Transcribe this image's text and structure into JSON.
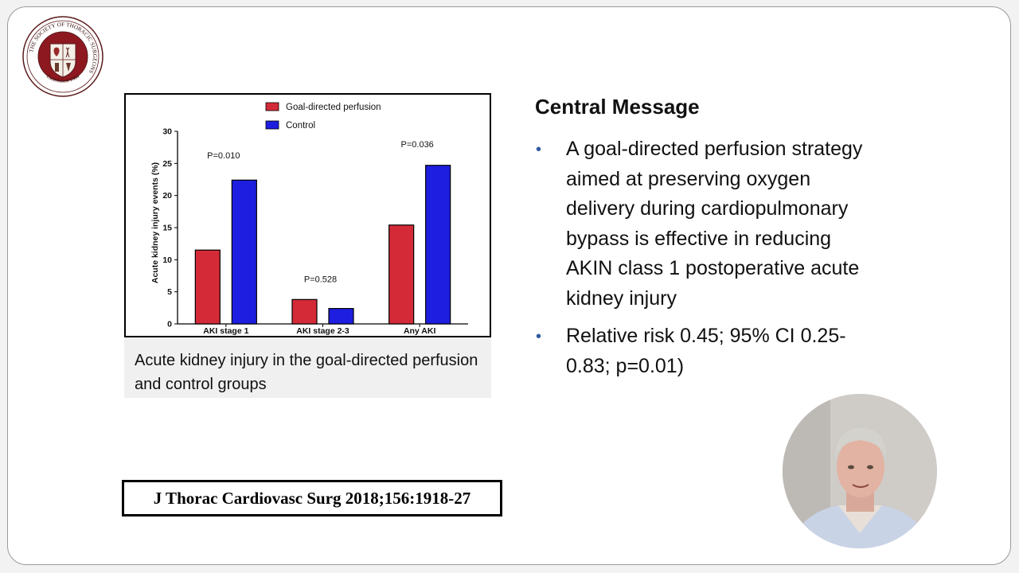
{
  "logo": {
    "ring_text": "THE SOCIETY OF THORACIC SURGEONS",
    "established": "Established 1964"
  },
  "chart_data": {
    "type": "bar",
    "categories": [
      "AKI stage 1",
      "AKI stage 2-3",
      "Any AKI"
    ],
    "series": [
      {
        "name": "Goal-directed perfusion",
        "color": "#d42a38",
        "values": [
          11.5,
          3.8,
          15.4
        ]
      },
      {
        "name": "Control",
        "color": "#1e1ee0",
        "values": [
          22.4,
          2.4,
          24.7
        ]
      }
    ],
    "ylabel": "Acute kidney injury events (%)",
    "xlabel": "",
    "ylim": [
      0,
      30
    ],
    "yticks": [
      0,
      5,
      10,
      15,
      20,
      25,
      30
    ],
    "annotations": [
      {
        "text": "P=0.010",
        "category": "AKI stage 1",
        "y": 25.8
      },
      {
        "text": "P=0.528",
        "category": "AKI stage 2-3",
        "y": 6.5
      },
      {
        "text": "P=0.036",
        "category": "Any AKI",
        "y": 27.5
      }
    ],
    "legend_position": "top-center",
    "grid": false
  },
  "caption": "Acute kidney injury in the goal-directed perfusion and control groups",
  "citation": "J Thorac Cardiovasc Surg 2018;156:1918-27",
  "central_message": {
    "title": "Central Message",
    "bullets": [
      "A goal-directed perfusion strategy aimed at preserving oxygen delivery during cardiopulmonary bypass is effective in reducing AKIN class 1 postoperative acute kidney injury",
      "Relative risk 0.45; 95% CI 0.25-0.83; p=0.01)"
    ],
    "bullet_color": "#2e5a9e"
  }
}
